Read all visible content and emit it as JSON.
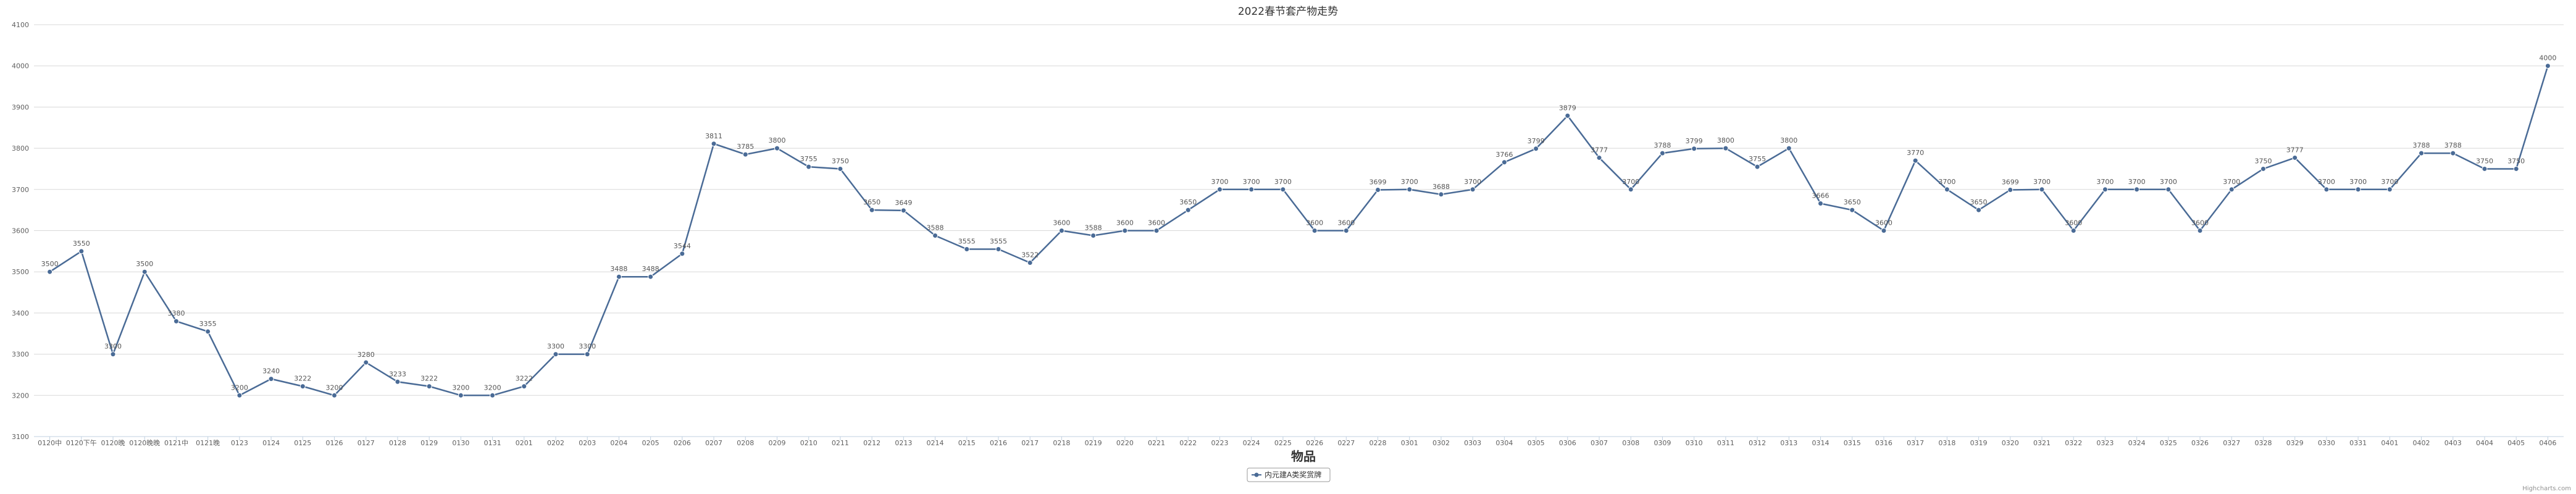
{
  "chart_data": {
    "type": "line",
    "title": "2022春节套产物走势",
    "xlabel": "物品",
    "ylabel": "",
    "ylim": [
      3100,
      4100
    ],
    "yticks": [
      3100,
      3200,
      3300,
      3400,
      3500,
      3600,
      3700,
      3800,
      3900,
      4000,
      4100
    ],
    "grid": true,
    "legend_position": "bottom-center",
    "categories": [
      "0120中",
      "0120下午",
      "0120晚",
      "0120晚晚",
      "0121中",
      "0121晚",
      "0123",
      "0124",
      "0125",
      "0126",
      "0127",
      "0128",
      "0129",
      "0130",
      "0131",
      "0201",
      "0202",
      "0203",
      "0204",
      "0205",
      "0206",
      "0207",
      "0208",
      "0209",
      "0210",
      "0211",
      "0212",
      "0213",
      "0214",
      "0215",
      "0216",
      "0217",
      "0218",
      "0219",
      "0220",
      "0221",
      "0222",
      "0223",
      "0224",
      "0225",
      "0226",
      "0227",
      "0228",
      "0301",
      "0302",
      "0303",
      "0304",
      "0305",
      "0306",
      "0307",
      "0308",
      "0309",
      "0310",
      "0311",
      "0312",
      "0313",
      "0314",
      "0315",
      "0316",
      "0317",
      "0318",
      "0319",
      "0320",
      "0321",
      "0322",
      "0323",
      "0324",
      "0325",
      "0326",
      "0327",
      "0328",
      "0329",
      "0330",
      "0331",
      "0401",
      "0402",
      "0403",
      "0404",
      "0405",
      "0406"
    ],
    "series": [
      {
        "name": "内元建A类奖赏牌",
        "color": "#4a6b96",
        "values": [
          3500,
          3550,
          3300,
          3500,
          3380,
          3355,
          3200,
          3240,
          3222,
          3200,
          3280,
          3233,
          3222,
          3200,
          3200,
          3222,
          3300,
          3300,
          3488,
          3488,
          3544,
          3811,
          3785,
          3800,
          3755,
          3750,
          3650,
          3649,
          3588,
          3555,
          3555,
          3522,
          3600,
          3588,
          3600,
          3600,
          3650,
          3700,
          3700,
          3700,
          3600,
          3600,
          3699,
          3700,
          3688,
          3700,
          3766,
          3799,
          3879,
          3777,
          3700,
          3788,
          3799,
          3800,
          3755,
          3800,
          3666,
          3650,
          3600,
          3770,
          3700,
          3650,
          3699,
          3700,
          3600,
          3700,
          3700,
          3700,
          3600,
          3700,
          3750,
          3777,
          3700,
          3700,
          3700,
          3788,
          3788,
          3750,
          3750,
          4000
        ]
      }
    ]
  },
  "credits": "Highcharts.com"
}
